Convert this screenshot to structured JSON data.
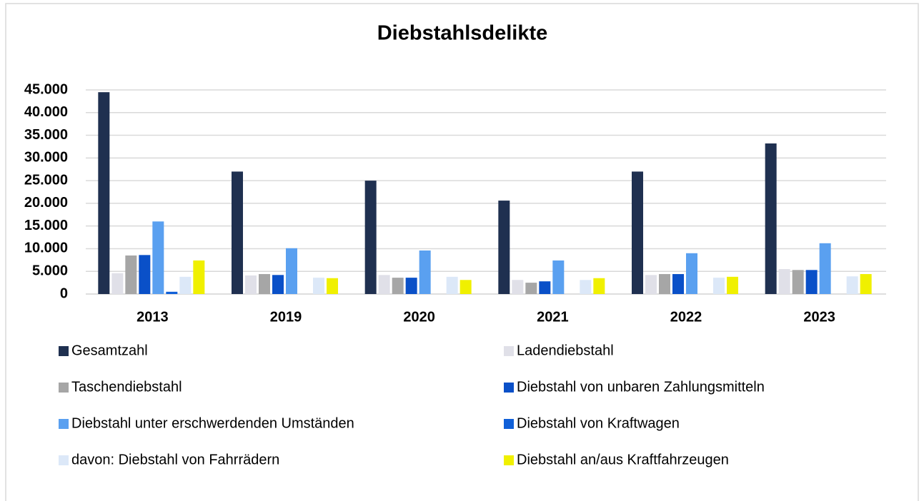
{
  "chart_data": {
    "type": "bar",
    "title": "Diebstahlsdelikte",
    "categories": [
      "2013",
      "2019",
      "2020",
      "2021",
      "2022",
      "2023"
    ],
    "series": [
      {
        "name": "Gesamtzahl",
        "color": "#1f3050",
        "values": [
          44500,
          27000,
          25000,
          20600,
          27000,
          33200
        ]
      },
      {
        "name": "Ladendiebstahl",
        "color": "#e0e0e8",
        "values": [
          4600,
          4100,
          4200,
          3100,
          4200,
          5500
        ]
      },
      {
        "name": "Taschendiebstahl",
        "color": "#a6a6a6",
        "values": [
          8500,
          4400,
          3600,
          2500,
          4400,
          5300
        ]
      },
      {
        "name": "Diebstahl von unbaren Zahlungsmitteln",
        "color": "#0a50c8",
        "values": [
          8600,
          4200,
          3600,
          2800,
          4400,
          5300
        ]
      },
      {
        "name": "Diebstahl unter erschwerdenden Umständen",
        "color": "#5aa0f0",
        "values": [
          16000,
          10100,
          9600,
          7400,
          9000,
          11200
        ]
      },
      {
        "name": "Diebstahl von Kraftwagen",
        "color": "#1060d8",
        "values": [
          500,
          0,
          0,
          0,
          0,
          0
        ]
      },
      {
        "name": "davon: Diebstahl von Fahrrädern",
        "color": "#dce8f8",
        "values": [
          3800,
          3600,
          3800,
          3100,
          3600,
          3900
        ]
      },
      {
        "name": "Diebstahl an/aus Kraftfahrzeugen",
        "color": "#f0f000",
        "values": [
          7400,
          3500,
          3100,
          3500,
          3800,
          4400
        ]
      }
    ],
    "ylim": [
      0,
      45000
    ],
    "yticks": [
      0,
      {
        "value": 5000,
        "label": "5.000"
      },
      {
        "value": 10000,
        "label": "10.000"
      },
      {
        "value": 15000,
        "label": "15.000"
      },
      {
        "value": 20000,
        "label": "20.000"
      },
      {
        "value": 25000,
        "label": "25.000"
      },
      {
        "value": 30000,
        "label": "30.000"
      },
      {
        "value": 35000,
        "label": "35.000"
      },
      {
        "value": 40000,
        "label": "40.000"
      },
      {
        "value": 45000,
        "label": "45.000"
      }
    ],
    "grid": true
  }
}
